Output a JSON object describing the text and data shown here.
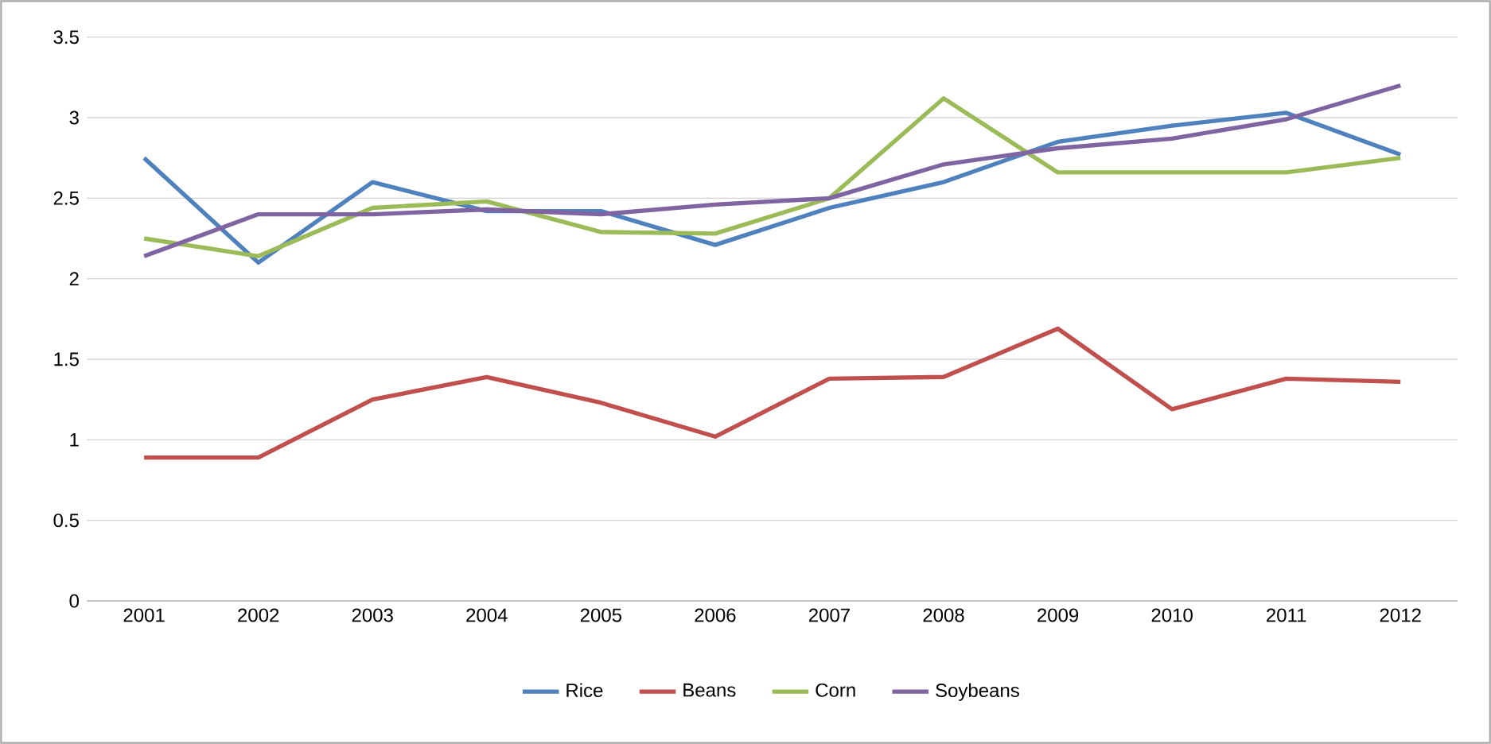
{
  "chart_data": {
    "type": "line",
    "categories": [
      "2001",
      "2002",
      "2003",
      "2004",
      "2005",
      "2006",
      "2007",
      "2008",
      "2009",
      "2010",
      "2011",
      "2012"
    ],
    "ylim": [
      0,
      3.5
    ],
    "yticks": [
      0,
      0.5,
      1,
      1.5,
      2,
      2.5,
      3,
      3.5
    ],
    "grid": "y",
    "legend": "bottom",
    "marker": "none",
    "series": [
      {
        "name": "Rice",
        "color": "#4f81bd",
        "values": [
          2.75,
          2.1,
          2.6,
          2.42,
          2.42,
          2.21,
          2.44,
          2.6,
          2.85,
          2.95,
          3.03,
          2.77
        ]
      },
      {
        "name": "Beans",
        "color": "#c0504d",
        "values": [
          0.89,
          0.89,
          1.25,
          1.39,
          1.23,
          1.02,
          1.38,
          1.39,
          1.69,
          1.19,
          1.38,
          1.36
        ]
      },
      {
        "name": "Corn",
        "color": "#9bbb59",
        "values": [
          2.25,
          2.14,
          2.44,
          2.48,
          2.29,
          2.28,
          2.5,
          3.12,
          2.66,
          2.66,
          2.66,
          2.75
        ]
      },
      {
        "name": "Soybeans",
        "color": "#8064a2",
        "values": [
          2.14,
          2.4,
          2.4,
          2.43,
          2.4,
          2.46,
          2.5,
          2.71,
          2.81,
          2.87,
          2.99,
          3.2
        ]
      }
    ]
  }
}
